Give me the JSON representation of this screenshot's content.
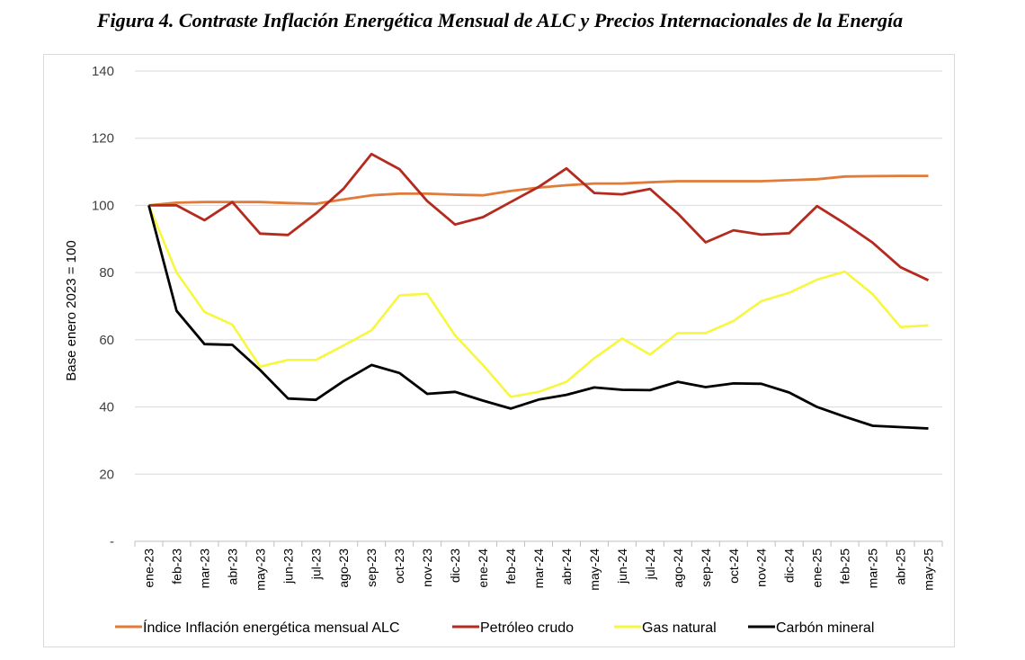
{
  "figure_title": "Figura 4. Contraste Inflación Energética Mensual de ALC y Precios Internacionales de la Energía",
  "chart_data": {
    "type": "line",
    "title": "",
    "xlabel": "",
    "ylabel": "Base enero 2023 = 100",
    "ylim": [
      0,
      140
    ],
    "yticks": [
      0,
      20,
      40,
      60,
      80,
      100,
      120,
      140
    ],
    "ytick_labels": [
      "-",
      "20",
      "40",
      "60",
      "80",
      "100",
      "120",
      "140"
    ],
    "grid": true,
    "legend_position": "bottom",
    "categories": [
      "ene-23",
      "feb-23",
      "mar-23",
      "abr-23",
      "may-23",
      "jun-23",
      "jul-23",
      "ago-23",
      "sep-23",
      "oct-23",
      "nov-23",
      "dic-23",
      "ene-24",
      "feb-24",
      "mar-24",
      "abr-24",
      "may-24",
      "jun-24",
      "jul-24",
      "ago-24",
      "sep-24",
      "oct-24",
      "nov-24",
      "dic-24",
      "ene-25",
      "feb-25",
      "mar-25",
      "abr-25",
      "may-25"
    ],
    "series": [
      {
        "name": "Índice Inflación energética mensual ALC",
        "color": "#e07b39",
        "values": [
          100,
          100.8,
          101,
          101,
          101,
          100.7,
          100.5,
          101.8,
          103,
          103.5,
          103.5,
          103.2,
          103,
          104.3,
          105.3,
          106,
          106.5,
          106.5,
          106.9,
          107.2,
          107.2,
          107.2,
          107.2,
          107.5,
          107.8,
          108.6,
          108.7,
          108.8,
          108.8
        ]
      },
      {
        "name": "Petróleo crudo",
        "color": "#b52a1e",
        "values": [
          100,
          100,
          95.6,
          101,
          91.6,
          91.2,
          97.6,
          105,
          115.3,
          110.8,
          101.3,
          94.3,
          96.5,
          101,
          105.5,
          111,
          103.7,
          103.3,
          104.9,
          97.6,
          89,
          92.6,
          91.3,
          91.7,
          99.8,
          94.6,
          88.9,
          81.6,
          77.7
        ]
      },
      {
        "name": "Gas natural",
        "color": "#f7f740",
        "values": [
          100,
          80,
          68.3,
          64.5,
          52,
          54,
          54,
          58.3,
          62.8,
          73.2,
          73.7,
          61.3,
          52.5,
          43,
          44.5,
          47.5,
          54.5,
          60.4,
          55.6,
          62,
          62,
          65.6,
          71.5,
          74,
          77.9,
          80.3,
          73.6,
          63.8,
          64.3
        ]
      },
      {
        "name": "Carbón mineral",
        "color": "#000000",
        "values": [
          100,
          68.6,
          58.7,
          58.5,
          51,
          42.5,
          42.1,
          47.7,
          52.5,
          50.1,
          43.9,
          44.5,
          41.9,
          39.5,
          42.2,
          43.6,
          45.8,
          45.1,
          45,
          47.5,
          45.9,
          47,
          46.9,
          44.3,
          40,
          37.1,
          34.4,
          34,
          33.6
        ]
      }
    ]
  }
}
